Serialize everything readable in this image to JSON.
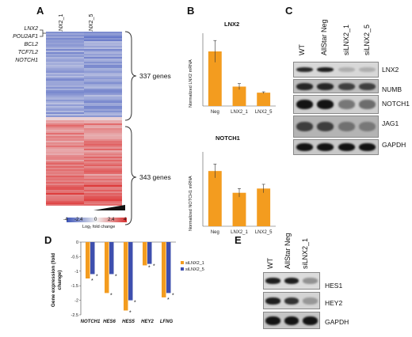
{
  "panels": {
    "A": {
      "label": "A",
      "columns": [
        "siLNX2_1",
        "siLNX2_5"
      ],
      "highlight_genes": [
        "LNX2",
        "POU2AF1",
        "BCL2",
        "TCF7L2",
        "NOTCH1"
      ],
      "group_down": "337 genes",
      "group_up": "343 genes",
      "scale_ticks": [
        "-4",
        "-2.4",
        "0",
        "2.4",
        "4"
      ],
      "scale_caption": "Log₂ fold change",
      "colors": {
        "blue": "#5a6fc4",
        "white": "#f2f2f2",
        "red": "#dd3a3a"
      }
    },
    "B": {
      "label": "B"
    },
    "C": {
      "label": "C",
      "lanes": [
        "WT",
        "AllStar Neg",
        "siLNX2_1",
        "siLNX2_5"
      ],
      "bands": [
        "LNX2",
        "NUMB",
        "NOTCH1",
        "JAG1",
        "GAPDH"
      ]
    },
    "D": {
      "label": "D"
    },
    "E": {
      "label": "E",
      "lanes": [
        "WT",
        "AllStar Neg",
        "siLNX2_1"
      ],
      "bands": [
        "HES1",
        "HEY2",
        "GAPDH"
      ]
    }
  },
  "chart_data": [
    {
      "id": "B-top",
      "type": "bar",
      "title": "LNX2",
      "ylabel": "Normalized LNX2 mRNA",
      "categories": [
        "Neg",
        "LNX2_1",
        "LNX2_5"
      ],
      "values": [
        45,
        16,
        11
      ],
      "errors": [
        9,
        2.5,
        0.7
      ],
      "ylim": [
        0,
        60
      ],
      "color": "#f39c1f"
    },
    {
      "id": "B-bottom",
      "type": "bar",
      "title": "NOTCH1",
      "ylabel": "Normalized NOTCH1 mRNA",
      "categories": [
        "Neg",
        "LNX2_1",
        "LNX2_5"
      ],
      "values": [
        1.04,
        0.63,
        0.71
      ],
      "errors": [
        0.13,
        0.08,
        0.08
      ],
      "ylim": [
        0,
        1.4
      ],
      "color": "#f39c1f"
    },
    {
      "id": "D",
      "type": "bar",
      "ylabel": "Gene expression (fold change)",
      "categories": [
        "NOTCH1",
        "HES6",
        "HES5",
        "HEY2",
        "LFNG"
      ],
      "series": [
        {
          "name": "siLNX2_1",
          "values": [
            -1.25,
            -1.75,
            -2.35,
            -0.8,
            -1.9
          ],
          "color": "#f39c1f"
        },
        {
          "name": "siLNX2_5",
          "values": [
            -1.1,
            -1.1,
            -2.0,
            -0.75,
            -1.75
          ],
          "color": "#3e4fae"
        }
      ],
      "yticks": [
        "0",
        "-0.5",
        "-1",
        "-1.5",
        "-2",
        "-2.5"
      ],
      "ylim": [
        -2.5,
        0
      ],
      "significance_marker": "*"
    }
  ]
}
